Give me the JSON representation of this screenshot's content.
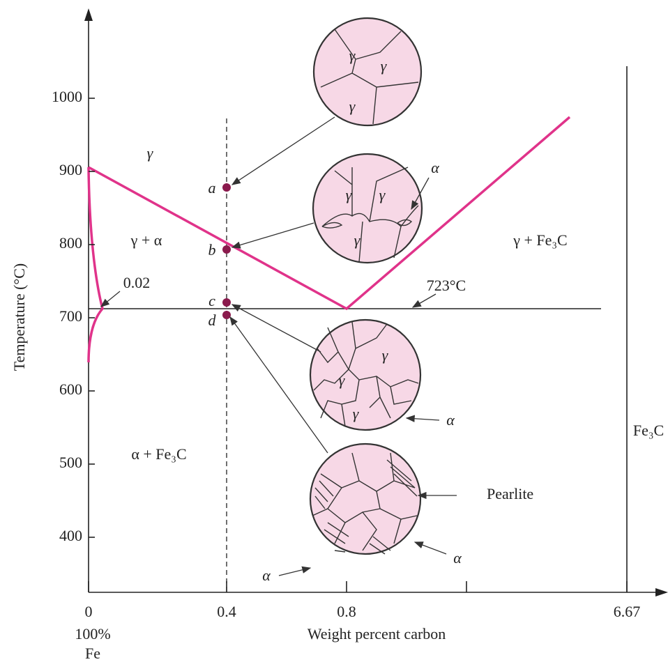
{
  "y_axis": {
    "title": "Temperature (°C)",
    "ticks": [
      1000,
      900,
      800,
      700,
      600,
      500,
      400
    ]
  },
  "x_axis": {
    "title": "Weight percent carbon",
    "ticks": [
      "0",
      "0.4",
      "0.8",
      "6.67"
    ],
    "origin_note": [
      "100%",
      "Fe"
    ]
  },
  "regions": {
    "gamma": "γ",
    "gamma_alpha": "γ + α",
    "gamma_cementite": "γ + Fe₃C",
    "alpha_cementite": "α + Fe₃C",
    "cementite": "Fe₃C"
  },
  "annotations": {
    "solubility": "0.02",
    "eutectoid": "723°C"
  },
  "points": [
    "a",
    "b",
    "c",
    "d"
  ],
  "micrographs": {
    "gamma": "γ",
    "alpha": "α",
    "pearlite": "Pearlite"
  }
}
